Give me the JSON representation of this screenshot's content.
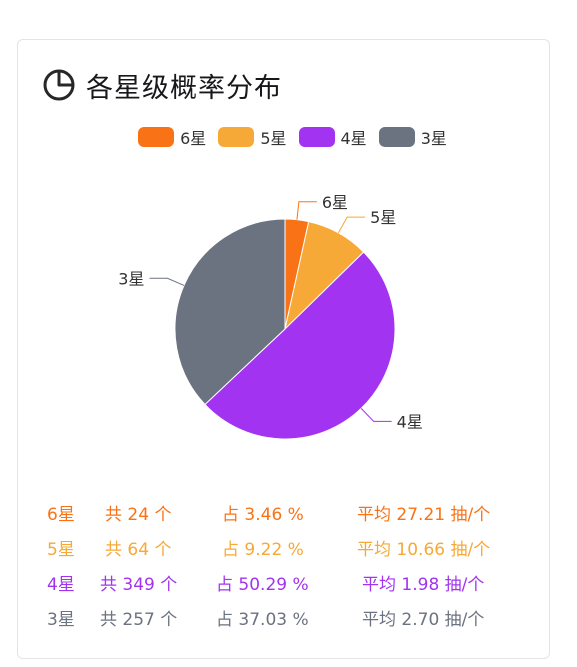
{
  "title": "各星级概率分布",
  "icon": "pie-chart-icon",
  "colors": {
    "six": "#f97316",
    "five": "#f6a936",
    "four": "#a233f0",
    "three": "#6b7280"
  },
  "chart_data": {
    "type": "pie",
    "legend_position": "top",
    "categories": [
      "6星",
      "5星",
      "4星",
      "3星"
    ],
    "values": [
      24,
      64,
      349,
      257
    ],
    "percents": [
      3.46,
      9.22,
      50.29,
      37.03
    ],
    "colors": [
      "#f97316",
      "#f6a936",
      "#a233f0",
      "#6b7280"
    ]
  },
  "stats": [
    {
      "star": "6星",
      "count": "共 24 个",
      "pct": "占 3.46 %",
      "avg": "平均 27.21 抽/个",
      "color": "#f97316"
    },
    {
      "star": "5星",
      "count": "共 64 个",
      "pct": "占 9.22 %",
      "avg": "平均 10.66 抽/个",
      "color": "#f6a936"
    },
    {
      "star": "4星",
      "count": "共 349 个",
      "pct": "占 50.29 %",
      "avg": "平均 1.98 抽/个",
      "color": "#a233f0"
    },
    {
      "star": "3星",
      "count": "共 257 个",
      "pct": "占 37.03 %",
      "avg": "平均 2.70 抽/个",
      "color": "#6b7280"
    }
  ]
}
